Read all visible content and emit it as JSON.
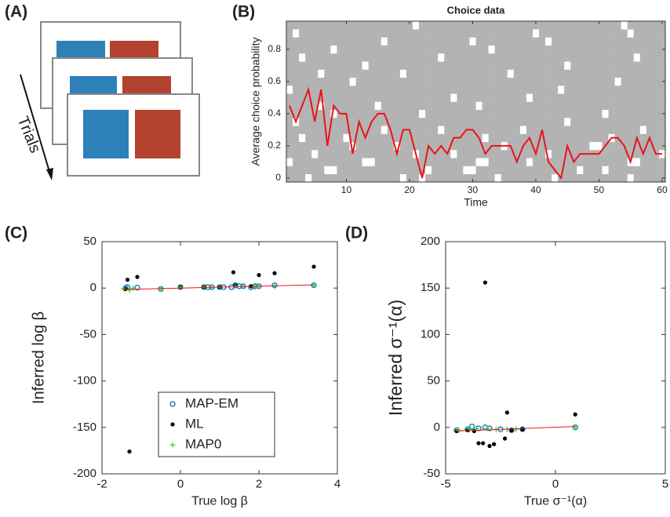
{
  "panel_labels": [
    "(A)",
    "(B)",
    "(C)",
    "(D)"
  ],
  "diagram": {
    "label": "Trials"
  },
  "chart_data": [
    {
      "type": "line",
      "title": "Choice data",
      "x_label": "Time",
      "y_label": "Average choice probability",
      "x": [
        1,
        2,
        3,
        4,
        5,
        6,
        7,
        8,
        9,
        10,
        11,
        12,
        13,
        14,
        15,
        16,
        17,
        18,
        19,
        20,
        21,
        22,
        23,
        24,
        25,
        26,
        27,
        28,
        29,
        30,
        31,
        32,
        33,
        34,
        35,
        36,
        37,
        38,
        39,
        40,
        41,
        42,
        43,
        44,
        45,
        46,
        47,
        48,
        49,
        50,
        51,
        52,
        53,
        54,
        55,
        56,
        57,
        58,
        59,
        60
      ],
      "values": [
        0.45,
        0.35,
        0.45,
        0.55,
        0.35,
        0.55,
        0.2,
        0.45,
        0.4,
        0.4,
        0.15,
        0.35,
        0.25,
        0.35,
        0.4,
        0.4,
        0.3,
        0.15,
        0.3,
        0.3,
        0.15,
        0.0,
        0.2,
        0.15,
        0.2,
        0.15,
        0.25,
        0.25,
        0.3,
        0.3,
        0.25,
        0.15,
        0.2,
        0.2,
        0.2,
        0.2,
        0.1,
        0.2,
        0.25,
        0.15,
        0.3,
        0.1,
        0.05,
        0.0,
        0.2,
        0.1,
        0.15,
        0.15,
        0.15,
        0.15,
        0.2,
        0.25,
        0.25,
        0.2,
        0.1,
        0.25,
        0.15,
        0.25,
        0.15,
        0.15
      ],
      "color": "#e8141a",
      "choices": [
        "111011111111111111011011111111111011111111011111111111011111",
        "111111001111111111111101111100111111111111111101110111111111",
        "011111111111001111111111111111001111110111111111111111001111",
        "111101111111111111110111110111111111111110111111111111111110",
        "111111111101111110111111111111111101111111111111001111111111",
        "110111111011111111111111111111101111111111111111111011111111",
        "111111111111111011111111011111111111101111111111111111110111",
        "101111111111111111111111111111111111111111110111111111111111",
        "111111101111111111111011111111111111111111111111110111111111",
        "111110111111110111111111111111011111111111111111111111111111",
        "111111111111111111111111110111111111110111111111111111111111",
        "011111111111111111111111111111111111111111101111111111111111",
        "111111111101111111111111111111111111111111111111111101111111",
        "111110111111111111011111111111111110111111111111111111111111",
        "111111111111011111111111111111111111111111110111111111111111",
        "110111111111111111111111011111111111111111111111111111101111",
        "111111101111111111111111111111110111111111111111111111111111",
        "111111111111111011111111111110111111111110111111111111111111",
        "101111111111111111111111111111111111111011111111111111011111",
        "111111111111111111110111111111111111111111111111111110111111"
      ],
      "xlim": [
        0.5,
        60.5
      ],
      "xticks": [
        10,
        20,
        30,
        40,
        50,
        60
      ],
      "ylim": [
        -0.025,
        0.975
      ],
      "yticks": [
        0,
        0.2,
        0.4,
        0.6,
        0.8
      ]
    },
    {
      "type": "scatter",
      "x_label": "True log β",
      "y_label": "Inferred log β",
      "legend": "lower right",
      "xlim": [
        -2,
        4
      ],
      "xticks": [
        -2,
        0,
        2,
        4
      ],
      "ylim": [
        -200,
        50
      ],
      "yticks": [
        -200,
        -150,
        -100,
        -50,
        0,
        50
      ],
      "fit": {
        "color": "#e8141a",
        "x": [
          -1.45,
          3.4
        ],
        "values": [
          -1.5,
          3.5
        ]
      },
      "series": [
        {
          "name": "MAP-EM",
          "color": "#0072bd",
          "marker": "o",
          "x": [
            -1.4,
            -1.35,
            -1.1,
            -0.5,
            0,
            0.6,
            0.7,
            0.8,
            1.0,
            1.1,
            1.3,
            1.4,
            1.5,
            1.6,
            1.8,
            1.9,
            2.0,
            2.4,
            3.4
          ],
          "values": [
            0,
            1,
            0.5,
            -1,
            1,
            1,
            1,
            1,
            1,
            1,
            1,
            3,
            2,
            2,
            1,
            2,
            2,
            3,
            3
          ]
        },
        {
          "name": "ML",
          "color": "#000000",
          "marker": ".",
          "x": [
            -1.4,
            -1.35,
            -1.3,
            -1.1,
            0,
            0.6,
            1.0,
            1.35,
            1.4,
            1.8,
            2.0,
            2.4,
            3.4
          ],
          "values": [
            -1,
            9,
            -176,
            12,
            1,
            1,
            1,
            17,
            3,
            2,
            14,
            16,
            23
          ]
        },
        {
          "name": "MAP0",
          "color": "#33cc33",
          "marker": "+",
          "x": [
            -1.45,
            -1.3,
            -1.2,
            -0.5,
            0,
            0.6,
            0.8,
            1.0,
            1.4,
            1.6,
            1.9,
            2.0,
            2.4,
            3.4
          ],
          "values": [
            -1,
            -2,
            0,
            -1,
            1,
            1,
            1,
            1,
            2,
            2,
            1,
            2,
            2,
            3
          ]
        }
      ]
    },
    {
      "type": "scatter",
      "x_label": "True σ⁻¹(α)",
      "y_label": "Inferred σ⁻¹(α)",
      "xlim": [
        -5,
        5
      ],
      "xticks": [
        -5,
        0,
        5
      ],
      "ylim": [
        -50,
        200
      ],
      "yticks": [
        -50,
        0,
        50,
        100,
        150,
        200
      ],
      "fit": {
        "color": "#e8141a",
        "x": [
          -4.6,
          0.9
        ],
        "values": [
          -4,
          1
        ]
      },
      "series": [
        {
          "name": "MAP-EM",
          "color": "#0072bd",
          "marker": "o",
          "x": [
            -4.5,
            -4.0,
            -3.8,
            -3.5,
            -3.2,
            -3.0,
            -2.5,
            -2.0,
            -1.5,
            0.9
          ],
          "values": [
            -3,
            -2,
            1,
            -1,
            0,
            -1,
            -2,
            -3,
            -2,
            0
          ]
        },
        {
          "name": "ML",
          "color": "#000000",
          "marker": ".",
          "x": [
            -4.5,
            -4.0,
            -3.7,
            -3.5,
            -3.3,
            -3.2,
            -3.0,
            -2.8,
            -2.3,
            -2.2,
            -2.0,
            -1.5,
            0.9
          ],
          "values": [
            -4,
            -3,
            -4,
            -17,
            -17,
            156,
            -20,
            -18,
            -12,
            16,
            -3,
            -2,
            14
          ]
        },
        {
          "name": "MAP0",
          "color": "#33cc33",
          "marker": "+",
          "x": [
            -4.4,
            -3.9,
            -3.6,
            -3.1,
            -2.7,
            -2.2,
            -1.8,
            0.9
          ],
          "values": [
            -3,
            -2,
            -1,
            -1,
            -2,
            -2,
            -2,
            0
          ]
        }
      ]
    }
  ]
}
